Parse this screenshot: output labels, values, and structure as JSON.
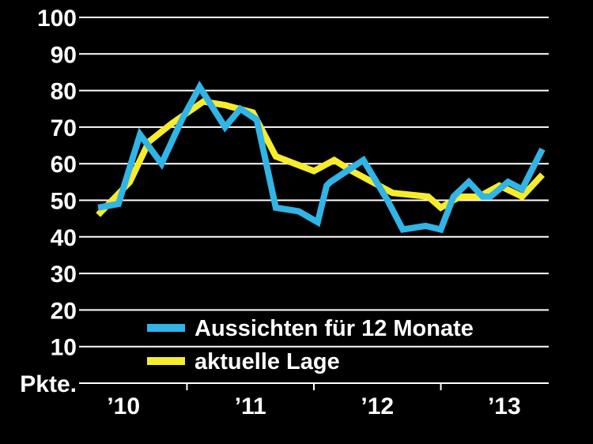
{
  "chart_data": {
    "type": "line",
    "title": "",
    "xlabel": "",
    "ylabel": "Pkte.",
    "ylim": [
      0,
      100
    ],
    "y_ticks": [
      10,
      20,
      30,
      40,
      50,
      60,
      70,
      80,
      90,
      100
    ],
    "y_unit_label": "Pkte.",
    "x_range": [
      2009.85,
      2013.55
    ],
    "x_ticks": [
      {
        "label": "’10",
        "x": 2010.2
      },
      {
        "label": "’11",
        "x": 2011.2
      },
      {
        "label": "’12",
        "x": 2012.2
      },
      {
        "label": "’13",
        "x": 2013.2
      }
    ],
    "x_separators": [
      2010.7,
      2011.7,
      2012.7
    ],
    "grid": "horizontal",
    "legend_position": "bottom-center",
    "series": [
      {
        "name": "Aussichten für 12 Monate",
        "color": "#31b4e6",
        "x": [
          2010.0,
          2010.16,
          2010.33,
          2010.5,
          2010.66,
          2010.8,
          2011.0,
          2011.12,
          2011.25,
          2011.4,
          2011.58,
          2011.73,
          2011.8,
          2011.83,
          2011.96,
          2012.09,
          2012.28,
          2012.4,
          2012.58,
          2012.7,
          2012.8,
          2012.92,
          2013.03,
          2013.09,
          2013.23,
          2013.34,
          2013.5
        ],
        "y": [
          48,
          49,
          68,
          60,
          72,
          81,
          70,
          75,
          72,
          48,
          47,
          44,
          54,
          55,
          58,
          61,
          50,
          42,
          43,
          42,
          51,
          55,
          51,
          51,
          55,
          53,
          64
        ]
      },
      {
        "name": "aktuelle Lage",
        "color": "#f7ec2c",
        "x": [
          2010.0,
          2010.25,
          2010.4,
          2010.58,
          2010.83,
          2011.0,
          2011.22,
          2011.4,
          2011.7,
          2011.86,
          2012.0,
          2012.32,
          2012.6,
          2012.7,
          2012.85,
          2013.0,
          2013.16,
          2013.34,
          2013.5
        ],
        "y": [
          46,
          55,
          66,
          71,
          77,
          76,
          74,
          62,
          58,
          61,
          58,
          52,
          51,
          48,
          51,
          51,
          54,
          51,
          57
        ]
      }
    ]
  }
}
